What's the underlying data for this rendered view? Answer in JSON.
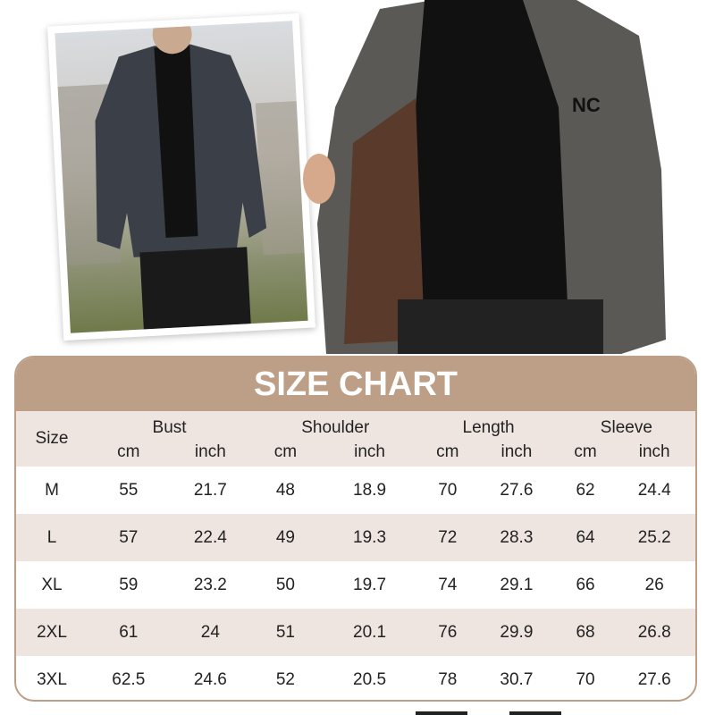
{
  "size_chart": {
    "title": "SIZE CHART",
    "size_header": "Size",
    "groups": [
      "Bust",
      "Shoulder",
      "Length",
      "Sleeve"
    ],
    "units": [
      "cm",
      "inch"
    ],
    "rows": [
      {
        "size": "M",
        "values": [
          "55",
          "21.7",
          "48",
          "18.9",
          "70",
          "27.6",
          "62",
          "24.4"
        ]
      },
      {
        "size": "L",
        "values": [
          "57",
          "22.4",
          "49",
          "19.3",
          "72",
          "28.3",
          "64",
          "25.2"
        ]
      },
      {
        "size": "XL",
        "values": [
          "59",
          "23.2",
          "50",
          "19.7",
          "74",
          "29.1",
          "66",
          "26"
        ]
      },
      {
        "size": "2XL",
        "values": [
          "61",
          "24",
          "51",
          "20.1",
          "76",
          "29.9",
          "68",
          "26.8"
        ]
      },
      {
        "size": "3XL",
        "values": [
          "62.5",
          "24.6",
          "52",
          "20.5",
          "78",
          "30.7",
          "70",
          "27.6"
        ]
      }
    ]
  },
  "colors": {
    "accent": "#bc9f86",
    "row_alt": "#efe5e0"
  },
  "logo_text": "NC"
}
